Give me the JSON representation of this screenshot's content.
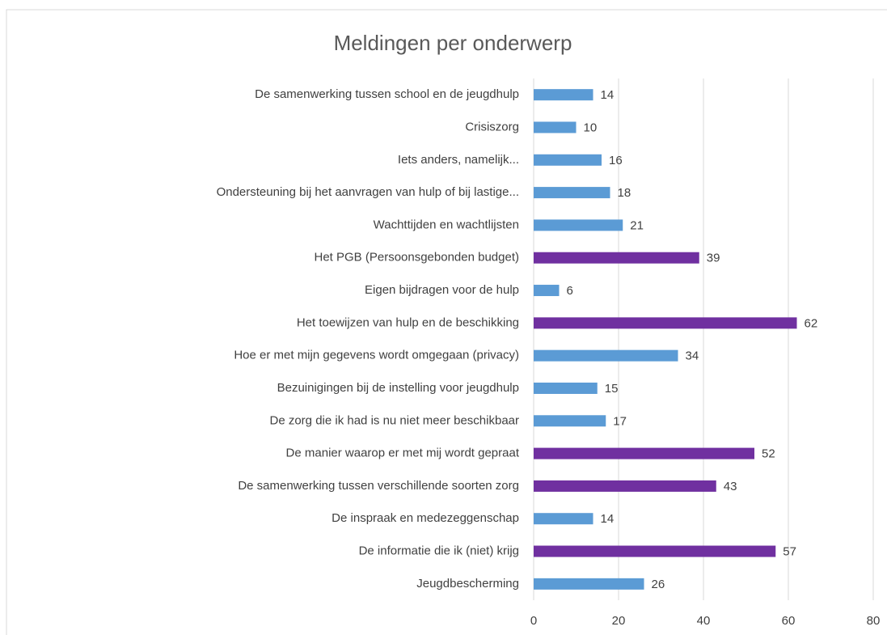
{
  "chart_data": {
    "type": "barh",
    "title": "Meldingen per onderwerp",
    "categories": [
      "De samenwerking tussen school en de jeugdhulp",
      "Crisiszorg",
      "Iets anders, namelijk...",
      "Ondersteuning bij het aanvragen van hulp of bij lastige...",
      "Wachttijden en wachtlijsten",
      "Het PGB (Persoonsgebonden budget)",
      "Eigen bijdragen voor de hulp",
      "Het toewijzen van hulp en de beschikking",
      "Hoe er met mijn gegevens wordt omgegaan (privacy)",
      "Bezuinigingen bij de instelling voor jeugdhulp",
      "De zorg die ik had is nu niet meer beschikbaar",
      "De manier waarop er met mij wordt gepraat",
      "De samenwerking tussen verschillende soorten zorg",
      "De inspraak en medezeggenschap",
      "De informatie die ik (niet) krijg",
      "Jeugdbescherming"
    ],
    "values": [
      14,
      10,
      16,
      18,
      21,
      39,
      6,
      62,
      34,
      15,
      17,
      52,
      43,
      14,
      57,
      26
    ],
    "colors": [
      "#5b9bd5",
      "#5b9bd5",
      "#5b9bd5",
      "#5b9bd5",
      "#5b9bd5",
      "#7030a0",
      "#5b9bd5",
      "#7030a0",
      "#5b9bd5",
      "#5b9bd5",
      "#5b9bd5",
      "#7030a0",
      "#7030a0",
      "#5b9bd5",
      "#7030a0",
      "#5b9bd5"
    ],
    "xlim": [
      0,
      80
    ],
    "xticks": [
      0,
      20,
      40,
      60,
      80
    ],
    "grid": true
  }
}
